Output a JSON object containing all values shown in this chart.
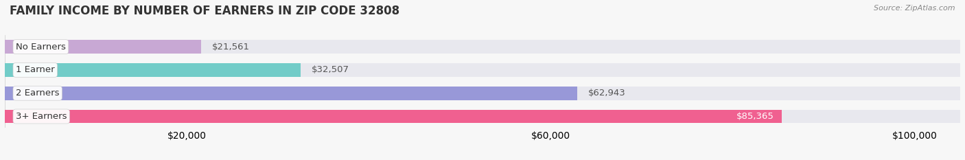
{
  "title": "FAMILY INCOME BY NUMBER OF EARNERS IN ZIP CODE 32808",
  "source": "Source: ZipAtlas.com",
  "categories": [
    "No Earners",
    "1 Earner",
    "2 Earners",
    "3+ Earners"
  ],
  "values": [
    21561,
    32507,
    62943,
    85365
  ],
  "bar_colors": [
    "#c8a8d4",
    "#72ccc8",
    "#9898d8",
    "#f06090"
  ],
  "bar_bg_color": "#e8e8ee",
  "xlim_data": [
    0,
    105000
  ],
  "xticks": [
    20000,
    60000,
    100000
  ],
  "xtick_labels": [
    "$20,000",
    "$60,000",
    "$100,000"
  ],
  "value_labels": [
    "$21,561",
    "$32,507",
    "$62,943",
    "$85,365"
  ],
  "label_inside": [
    false,
    false,
    false,
    true
  ],
  "title_fontsize": 12,
  "source_fontsize": 8,
  "tick_fontsize": 9,
  "bar_label_fontsize": 9.5,
  "cat_label_fontsize": 9.5,
  "background_color": "#f7f7f7",
  "bar_height": 0.58
}
